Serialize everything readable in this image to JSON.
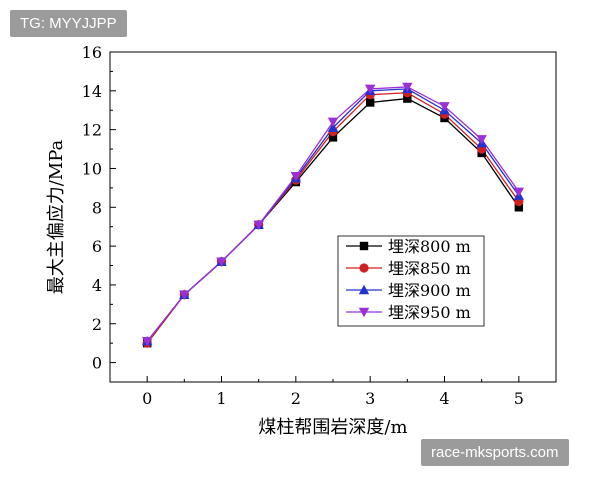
{
  "watermark_top": "TG: MYYJJPP",
  "watermark_bottom": "race-mksports.com",
  "chart_data": {
    "type": "line",
    "title": "",
    "xlabel": "煤柱帮围岩深度/m",
    "ylabel": "最大主偏应力/MPa",
    "xlim": [
      -0.5,
      5.5
    ],
    "ylim": [
      -1,
      16
    ],
    "x_ticks": [
      0,
      1,
      2,
      3,
      4,
      5
    ],
    "y_ticks": [
      0,
      2,
      4,
      6,
      8,
      10,
      12,
      14,
      16
    ],
    "grid": false,
    "legend_position": "lower-right",
    "x": [
      0,
      0.5,
      1,
      1.5,
      2,
      2.5,
      3,
      3.5,
      4,
      4.5,
      5
    ],
    "series": [
      {
        "name": "埋深800 m",
        "marker": "square",
        "color": "#000000",
        "values": [
          1.0,
          3.5,
          5.2,
          7.1,
          9.3,
          11.6,
          13.4,
          13.6,
          12.6,
          10.8,
          8.0
        ]
      },
      {
        "name": "埋深850 m",
        "marker": "circle",
        "color": "#d21f1f",
        "values": [
          1.0,
          3.5,
          5.2,
          7.1,
          9.4,
          11.9,
          13.8,
          13.9,
          12.8,
          11.0,
          8.3
        ]
      },
      {
        "name": "埋深900 m",
        "marker": "triangle-up",
        "color": "#2233cc",
        "values": [
          1.1,
          3.5,
          5.2,
          7.1,
          9.5,
          12.1,
          14.0,
          14.1,
          13.0,
          11.3,
          8.6
        ]
      },
      {
        "name": "埋深950 m",
        "marker": "triangle-down",
        "color": "#9b30d9",
        "values": [
          1.1,
          3.5,
          5.2,
          7.1,
          9.6,
          12.4,
          14.1,
          14.2,
          13.2,
          11.5,
          8.8
        ]
      }
    ]
  }
}
